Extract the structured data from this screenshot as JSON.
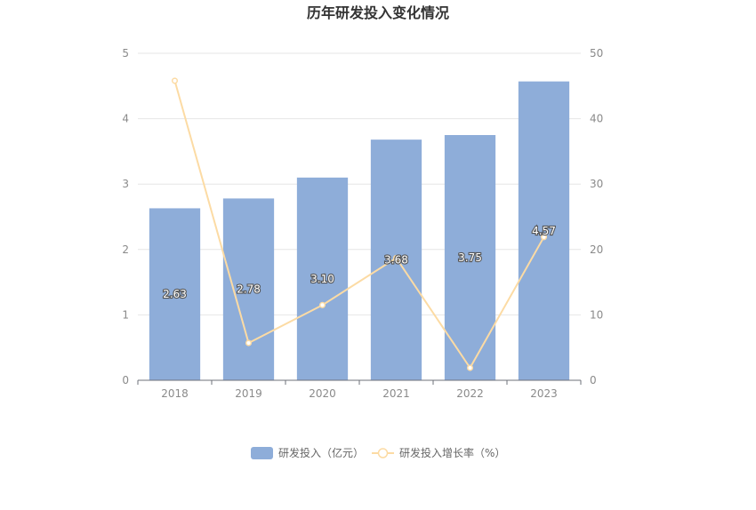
{
  "chart_data": {
    "type": "bar",
    "title": "历年研发投入变化情况",
    "categories": [
      "2018",
      "2019",
      "2020",
      "2021",
      "2022",
      "2023"
    ],
    "series": [
      {
        "name": "研发投入（亿元）",
        "type": "bar",
        "axis": "left",
        "values": [
          2.63,
          2.78,
          3.1,
          3.68,
          3.75,
          4.57
        ],
        "labels": [
          "2.63",
          "2.78",
          "3.10",
          "3.68",
          "3.75",
          "4.57"
        ],
        "color": "#8eadd9"
      },
      {
        "name": "研发投入增长率（%）",
        "type": "line",
        "axis": "right",
        "values": [
          45.8,
          5.7,
          11.5,
          18.7,
          1.9,
          21.9
        ],
        "color": "#fcdba4"
      }
    ],
    "y_left": {
      "min": 0,
      "max": 5,
      "ticks": [
        "0",
        "1",
        "2",
        "3",
        "4",
        "5"
      ]
    },
    "y_right": {
      "min": 0,
      "max": 50,
      "ticks": [
        "0",
        "10",
        "20",
        "30",
        "40",
        "50"
      ]
    },
    "grid": true,
    "legend_position": "bottom-center"
  }
}
